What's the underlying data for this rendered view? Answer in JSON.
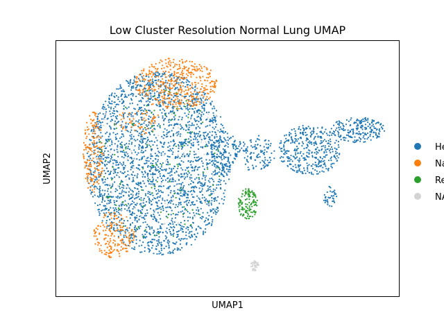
{
  "chart_data": {
    "type": "scatter",
    "title": "Low Cluster Resolution Normal Lung UMAP",
    "xlabel": "UMAP1",
    "ylabel": "UMAP2",
    "ticks_visible": false,
    "grid": false,
    "legend_position": "right",
    "legend": [
      {
        "label": "He",
        "color": "#1f77b4"
      },
      {
        "label": "Na",
        "color": "#ff7f0e"
      },
      {
        "label": "Re",
        "color": "#2ca02c"
      },
      {
        "label": "NA",
        "color": "#d3d3d3"
      }
    ],
    "xlim": [
      0,
      100
    ],
    "ylim": [
      0,
      100
    ],
    "series": [
      {
        "label": "He",
        "color": "#1f77b4",
        "regions": [
          {
            "cx": 30,
            "cy": 52,
            "rx": 21,
            "ry": 36,
            "n": 2600
          },
          {
            "cx": 49,
            "cy": 56,
            "rx": 4,
            "ry": 9,
            "n": 120
          },
          {
            "cx": 58,
            "cy": 56,
            "rx": 6,
            "ry": 7,
            "n": 120
          },
          {
            "cx": 74,
            "cy": 57,
            "rx": 9,
            "ry": 10,
            "n": 380
          },
          {
            "cx": 88,
            "cy": 65,
            "rx": 8,
            "ry": 5,
            "n": 220
          },
          {
            "cx": 80,
            "cy": 39,
            "rx": 2,
            "ry": 4,
            "n": 40
          }
        ]
      },
      {
        "label": "Na",
        "color": "#ff7f0e",
        "regions": [
          {
            "cx": 35,
            "cy": 83,
            "rx": 12,
            "ry": 10,
            "n": 420
          },
          {
            "cx": 11,
            "cy": 56,
            "rx": 3,
            "ry": 16,
            "n": 180
          },
          {
            "cx": 17,
            "cy": 24,
            "rx": 6,
            "ry": 9,
            "n": 180
          },
          {
            "cx": 24,
            "cy": 68,
            "rx": 7,
            "ry": 5,
            "n": 60
          }
        ]
      },
      {
        "label": "Re",
        "color": "#2ca02c",
        "regions": [
          {
            "cx": 56,
            "cy": 36,
            "rx": 3,
            "ry": 6,
            "n": 130
          },
          {
            "cx": 30,
            "cy": 52,
            "rx": 18,
            "ry": 30,
            "n": 120
          }
        ]
      },
      {
        "label": "NA",
        "color": "#d3d3d3",
        "regions": [
          {
            "cx": 58,
            "cy": 12,
            "rx": 1.2,
            "ry": 2.2,
            "n": 40
          },
          {
            "cx": 30,
            "cy": 55,
            "rx": 20,
            "ry": 30,
            "n": 90
          }
        ]
      }
    ]
  }
}
